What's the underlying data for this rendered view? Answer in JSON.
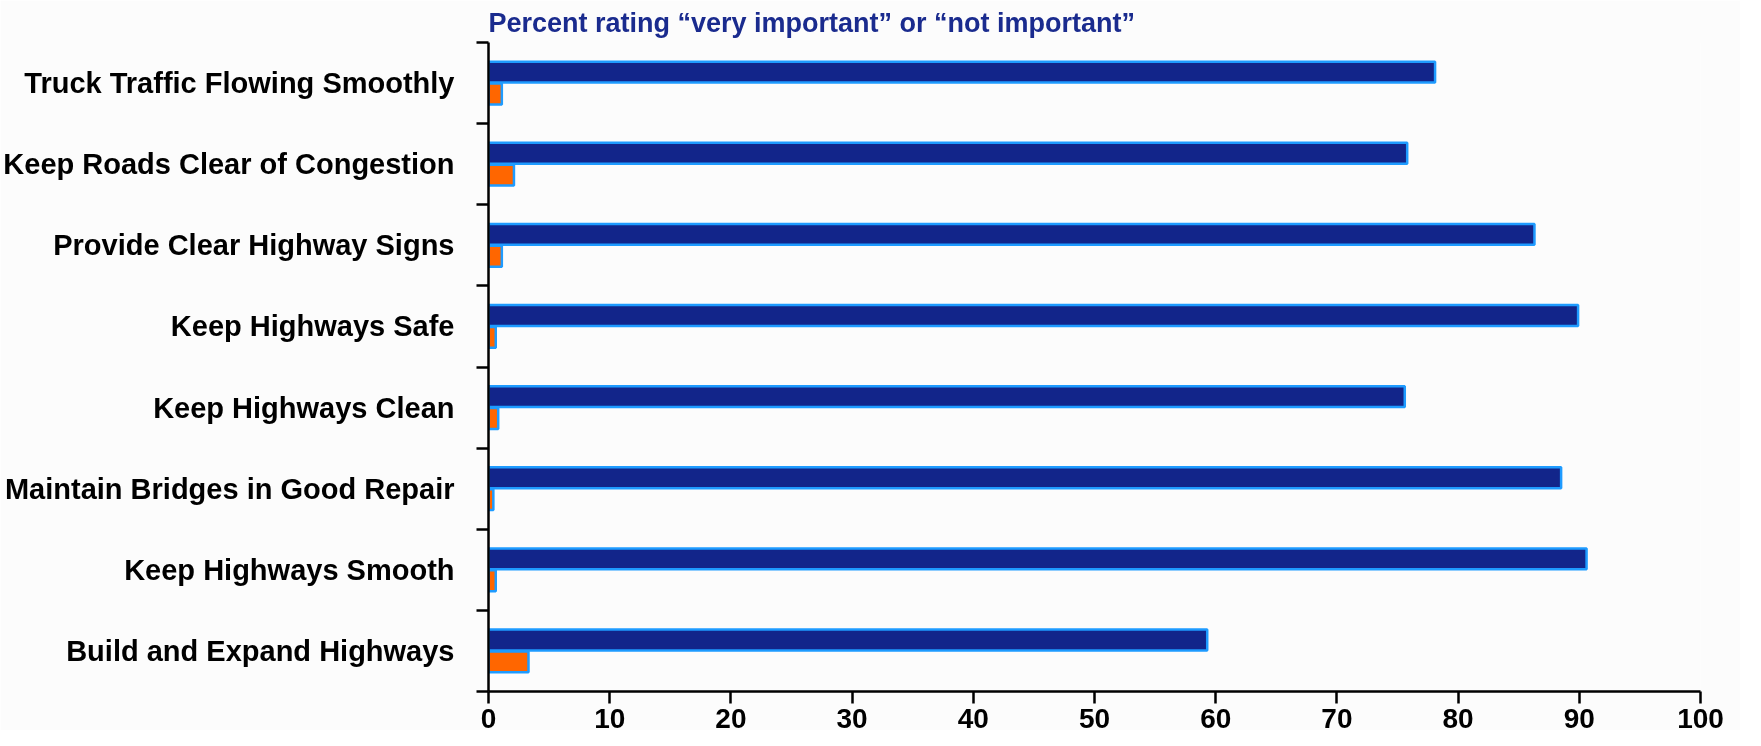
{
  "chart_data": {
    "type": "bar",
    "orientation": "horizontal",
    "title": "Percent rating “very important” or “not important”",
    "categories": [
      "Truck Traffic Flowing Smoothly",
      "Keep Roads Clear of Congestion",
      "Provide Clear Highway Signs",
      "Keep Highways Safe",
      "Keep Highways Clean",
      "Maintain Bridges in Good Repair",
      "Keep Highways Smooth",
      "Build and Expand Highways"
    ],
    "series": [
      {
        "color": "#12258a",
        "values": [
          78.1,
          75.8,
          86.3,
          89.9,
          75.6,
          88.5,
          90.6,
          59.3
        ]
      },
      {
        "color": "#ff6600",
        "values": [
          1.1,
          2.1,
          1.1,
          0.6,
          0.8,
          0.4,
          0.6,
          3.3
        ]
      }
    ],
    "xlim": [
      0,
      100
    ],
    "xticks": [
      0,
      10,
      20,
      30,
      40,
      50,
      60,
      70,
      80,
      90,
      100
    ],
    "grid": false
  }
}
